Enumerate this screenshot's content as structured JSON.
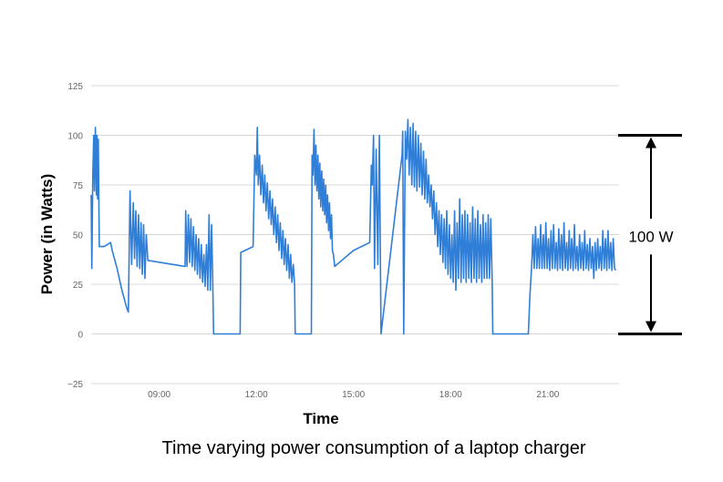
{
  "chart_data": {
    "type": "line",
    "title": "",
    "xlabel": "Time",
    "ylabel": "Power (in Watts)",
    "ylim": [
      -25,
      125
    ],
    "xlim_hours": [
      6.9,
      23.2
    ],
    "yticks": [
      "125",
      "100",
      "75",
      "50",
      "25",
      "0",
      "−25"
    ],
    "yticks_values": [
      125,
      100,
      75,
      50,
      25,
      0,
      -25
    ],
    "xticks": [
      "09:00",
      "12:00",
      "15:00",
      "18:00",
      "21:00"
    ],
    "xticks_hours": [
      9,
      12,
      15,
      18,
      21
    ],
    "grid": true,
    "legend": "none",
    "series": [
      {
        "color": "#2f7ed8",
        "points": [
          [
            6.9,
            70
          ],
          [
            6.92,
            33
          ],
          [
            6.95,
            80
          ],
          [
            6.98,
            100
          ],
          [
            7.0,
            72
          ],
          [
            7.03,
            104
          ],
          [
            7.06,
            70
          ],
          [
            7.08,
            100
          ],
          [
            7.1,
            68
          ],
          [
            7.12,
            98
          ],
          [
            7.15,
            44
          ],
          [
            7.3,
            44
          ],
          [
            7.5,
            46
          ],
          [
            7.55,
            42
          ],
          [
            7.7,
            33
          ],
          [
            7.85,
            22
          ],
          [
            8.0,
            13
          ],
          [
            8.05,
            11
          ],
          [
            8.1,
            72
          ],
          [
            8.15,
            35
          ],
          [
            8.2,
            66
          ],
          [
            8.24,
            38
          ],
          [
            8.28,
            62
          ],
          [
            8.32,
            34
          ],
          [
            8.36,
            60
          ],
          [
            8.4,
            33
          ],
          [
            8.44,
            56
          ],
          [
            8.48,
            30
          ],
          [
            8.52,
            55
          ],
          [
            8.56,
            28
          ],
          [
            8.6,
            50
          ],
          [
            8.65,
            37
          ],
          [
            9.8,
            34
          ],
          [
            9.82,
            62
          ],
          [
            9.86,
            34
          ],
          [
            9.9,
            60
          ],
          [
            9.94,
            36
          ],
          [
            9.98,
            58
          ],
          [
            10.02,
            34
          ],
          [
            10.06,
            54
          ],
          [
            10.1,
            32
          ],
          [
            10.14,
            50
          ],
          [
            10.18,
            30
          ],
          [
            10.22,
            48
          ],
          [
            10.26,
            28
          ],
          [
            10.3,
            45
          ],
          [
            10.34,
            26
          ],
          [
            10.38,
            40
          ],
          [
            10.42,
            24
          ],
          [
            10.46,
            45
          ],
          [
            10.5,
            22
          ],
          [
            10.54,
            60
          ],
          [
            10.58,
            22
          ],
          [
            10.62,
            55
          ],
          [
            10.65,
            30
          ],
          [
            10.68,
            0
          ],
          [
            11.5,
            0
          ],
          [
            11.52,
            41
          ],
          [
            11.9,
            44
          ],
          [
            11.95,
            90
          ],
          [
            12.0,
            80
          ],
          [
            12.03,
            104
          ],
          [
            12.06,
            75
          ],
          [
            12.1,
            90
          ],
          [
            12.14,
            70
          ],
          [
            12.18,
            85
          ],
          [
            12.22,
            66
          ],
          [
            12.26,
            80
          ],
          [
            12.3,
            62
          ],
          [
            12.34,
            76
          ],
          [
            12.38,
            58
          ],
          [
            12.42,
            72
          ],
          [
            12.46,
            55
          ],
          [
            12.5,
            68
          ],
          [
            12.54,
            50
          ],
          [
            12.58,
            64
          ],
          [
            12.62,
            46
          ],
          [
            12.66,
            60
          ],
          [
            12.7,
            42
          ],
          [
            12.74,
            56
          ],
          [
            12.78,
            38
          ],
          [
            12.82,
            52
          ],
          [
            12.86,
            35
          ],
          [
            12.9,
            48
          ],
          [
            12.94,
            32
          ],
          [
            12.98,
            45
          ],
          [
            13.02,
            28
          ],
          [
            13.06,
            40
          ],
          [
            13.1,
            26
          ],
          [
            13.14,
            35
          ],
          [
            13.18,
            25
          ],
          [
            13.2,
            0
          ],
          [
            13.7,
            0
          ],
          [
            13.72,
            90
          ],
          [
            13.75,
            80
          ],
          [
            13.78,
            103
          ],
          [
            13.81,
            75
          ],
          [
            13.84,
            95
          ],
          [
            13.87,
            72
          ],
          [
            13.9,
            90
          ],
          [
            13.93,
            68
          ],
          [
            13.96,
            86
          ],
          [
            13.99,
            64
          ],
          [
            14.02,
            82
          ],
          [
            14.05,
            62
          ],
          [
            14.08,
            78
          ],
          [
            14.11,
            60
          ],
          [
            14.14,
            75
          ],
          [
            14.17,
            56
          ],
          [
            14.2,
            70
          ],
          [
            14.23,
            52
          ],
          [
            14.26,
            66
          ],
          [
            14.29,
            48
          ],
          [
            14.32,
            60
          ],
          [
            14.35,
            42
          ],
          [
            14.38,
            40
          ],
          [
            14.42,
            34
          ],
          [
            15.0,
            42
          ],
          [
            15.5,
            46
          ],
          [
            15.55,
            85
          ],
          [
            15.58,
            75
          ],
          [
            15.62,
            100
          ],
          [
            15.65,
            33
          ],
          [
            15.7,
            93
          ],
          [
            15.75,
            35
          ],
          [
            15.8,
            100
          ],
          [
            15.85,
            0
          ],
          [
            16.5,
            90
          ],
          [
            16.52,
            102
          ],
          [
            16.55,
            0
          ],
          [
            16.6,
            102
          ],
          [
            16.64,
            88
          ],
          [
            16.68,
            108
          ],
          [
            16.72,
            80
          ],
          [
            16.76,
            104
          ],
          [
            16.8,
            75
          ],
          [
            16.84,
            106
          ],
          [
            16.88,
            74
          ],
          [
            16.92,
            102
          ],
          [
            16.96,
            72
          ],
          [
            17.0,
            100
          ],
          [
            17.04,
            74
          ],
          [
            17.08,
            96
          ],
          [
            17.12,
            70
          ],
          [
            17.16,
            92
          ],
          [
            17.2,
            68
          ],
          [
            17.24,
            88
          ],
          [
            17.28,
            66
          ],
          [
            17.32,
            80
          ],
          [
            17.36,
            64
          ],
          [
            17.4,
            75
          ],
          [
            17.44,
            58
          ],
          [
            17.48,
            72
          ],
          [
            17.52,
            50
          ],
          [
            17.56,
            66
          ],
          [
            17.6,
            44
          ],
          [
            17.64,
            62
          ],
          [
            17.68,
            40
          ],
          [
            17.72,
            60
          ],
          [
            17.76,
            36
          ],
          [
            17.8,
            58
          ],
          [
            17.84,
            33
          ],
          [
            17.88,
            62
          ],
          [
            17.92,
            30
          ],
          [
            17.96,
            55
          ],
          [
            18.0,
            28
          ],
          [
            18.04,
            50
          ],
          [
            18.08,
            26
          ],
          [
            18.12,
            62
          ],
          [
            18.16,
            22
          ],
          [
            18.2,
            56
          ],
          [
            18.24,
            28
          ],
          [
            18.28,
            68
          ],
          [
            18.32,
            26
          ],
          [
            18.36,
            60
          ],
          [
            18.4,
            28
          ],
          [
            18.44,
            62
          ],
          [
            18.48,
            26
          ],
          [
            18.52,
            60
          ],
          [
            18.56,
            28
          ],
          [
            18.6,
            56
          ],
          [
            18.64,
            26
          ],
          [
            18.68,
            64
          ],
          [
            18.72,
            28
          ],
          [
            18.76,
            58
          ],
          [
            18.8,
            26
          ],
          [
            18.84,
            62
          ],
          [
            18.88,
            28
          ],
          [
            18.92,
            55
          ],
          [
            18.96,
            26
          ],
          [
            19.0,
            60
          ],
          [
            19.04,
            28
          ],
          [
            19.08,
            56
          ],
          [
            19.12,
            28
          ],
          [
            19.16,
            60
          ],
          [
            19.2,
            28
          ],
          [
            19.24,
            58
          ],
          [
            19.28,
            27
          ],
          [
            19.3,
            0
          ],
          [
            20.4,
            0
          ],
          [
            20.45,
            20
          ],
          [
            20.5,
            34
          ],
          [
            20.54,
            50
          ],
          [
            20.58,
            33
          ],
          [
            20.62,
            54
          ],
          [
            20.66,
            33
          ],
          [
            20.7,
            48
          ],
          [
            20.74,
            33
          ],
          [
            20.78,
            55
          ],
          [
            20.82,
            33
          ],
          [
            20.86,
            50
          ],
          [
            20.9,
            33
          ],
          [
            20.94,
            56
          ],
          [
            20.98,
            33
          ],
          [
            21.02,
            48
          ],
          [
            21.06,
            32
          ],
          [
            21.1,
            52
          ],
          [
            21.14,
            33
          ],
          [
            21.18,
            55
          ],
          [
            21.22,
            33
          ],
          [
            21.26,
            46
          ],
          [
            21.3,
            32
          ],
          [
            21.34,
            53
          ],
          [
            21.38,
            33
          ],
          [
            21.42,
            50
          ],
          [
            21.46,
            32
          ],
          [
            21.5,
            56
          ],
          [
            21.54,
            33
          ],
          [
            21.58,
            46
          ],
          [
            21.62,
            32
          ],
          [
            21.66,
            52
          ],
          [
            21.7,
            33
          ],
          [
            21.74,
            48
          ],
          [
            21.78,
            32
          ],
          [
            21.82,
            55
          ],
          [
            21.86,
            33
          ],
          [
            21.9,
            44
          ],
          [
            21.94,
            32
          ],
          [
            21.98,
            50
          ],
          [
            22.02,
            33
          ],
          [
            22.06,
            46
          ],
          [
            22.1,
            32
          ],
          [
            22.14,
            52
          ],
          [
            22.18,
            33
          ],
          [
            22.22,
            45
          ],
          [
            22.26,
            32
          ],
          [
            22.3,
            48
          ],
          [
            22.34,
            33
          ],
          [
            22.38,
            44
          ],
          [
            22.42,
            28
          ],
          [
            22.46,
            46
          ],
          [
            22.5,
            32
          ],
          [
            22.54,
            48
          ],
          [
            22.58,
            33
          ],
          [
            22.62,
            44
          ],
          [
            22.66,
            32
          ],
          [
            22.7,
            52
          ],
          [
            22.74,
            33
          ],
          [
            22.78,
            48
          ],
          [
            22.82,
            32
          ],
          [
            22.86,
            52
          ],
          [
            22.9,
            33
          ],
          [
            22.94,
            46
          ],
          [
            22.98,
            32
          ],
          [
            23.02,
            48
          ],
          [
            23.06,
            33
          ],
          [
            23.1,
            32
          ]
        ]
      }
    ],
    "annotations": [
      {
        "text": "100 W",
        "from": 0,
        "to": 100
      }
    ],
    "caption": "Time varying power consumption of a laptop charger"
  }
}
